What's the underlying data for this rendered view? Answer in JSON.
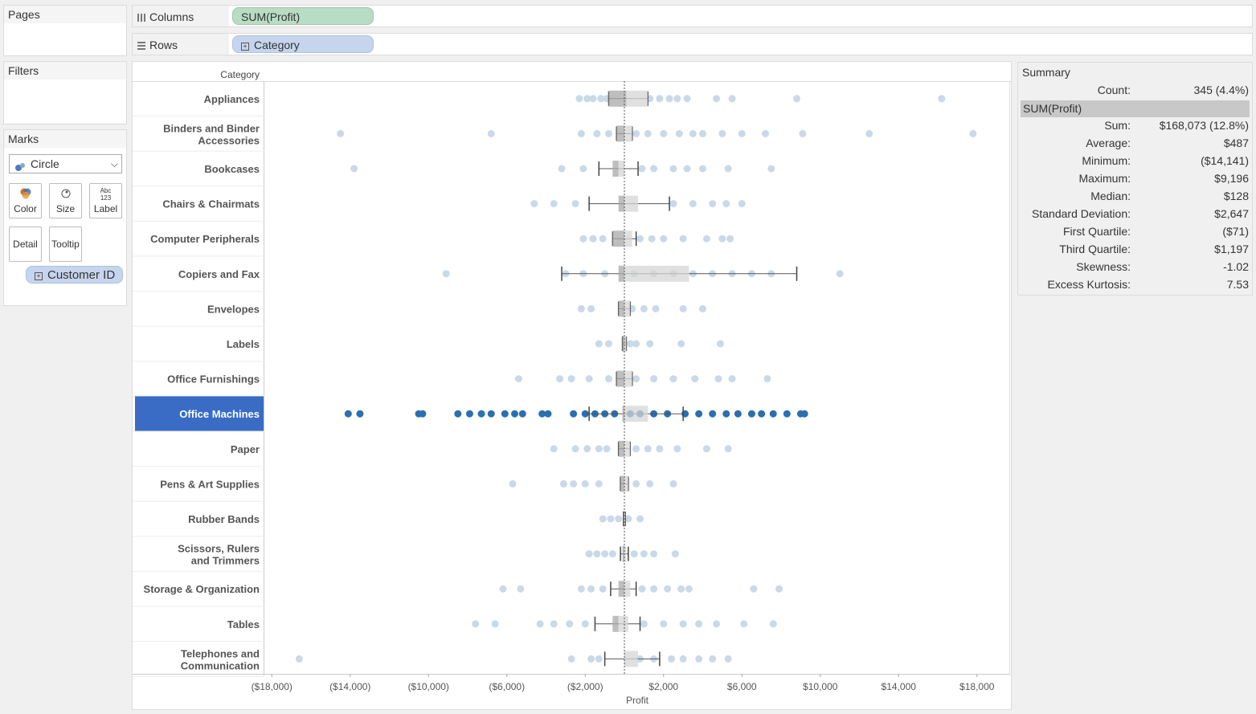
{
  "pages": {
    "title": "Pages"
  },
  "filters": {
    "title": "Filters"
  },
  "marks": {
    "title": "Marks",
    "mark_type": "Circle",
    "buttons": {
      "color": "Color",
      "size": "Size",
      "label": "Label",
      "detail": "Detail",
      "tooltip": "Tooltip",
      "label_icon": "Abc 123"
    },
    "detail_pill": "Customer ID"
  },
  "columns_shelf": {
    "label": "Columns",
    "pill": "SUM(Profit)"
  },
  "rows_shelf": {
    "label": "Rows",
    "pill": "Category"
  },
  "summary": {
    "title": "Summary",
    "count_label": "Count:",
    "count_value": "345 (4.4%)",
    "measure": "SUM(Profit)",
    "stats": [
      {
        "label": "Sum:",
        "value": "$168,073 (12.8%)"
      },
      {
        "label": "Average:",
        "value": "$487"
      },
      {
        "label": "Minimum:",
        "value": "($14,141)"
      },
      {
        "label": "Maximum:",
        "value": "$9,196"
      },
      {
        "label": "Median:",
        "value": "$128"
      },
      {
        "label": "Standard Deviation:",
        "value": "$2,647"
      },
      {
        "label": "First Quartile:",
        "value": "($71)"
      },
      {
        "label": "Third Quartile:",
        "value": "$1,197"
      },
      {
        "label": "Skewness:",
        "value": "-1.02"
      },
      {
        "label": "Excess Kurtosis:",
        "value": "7.53"
      }
    ]
  },
  "colors": {
    "highlight_row": "#3a6cc6",
    "selected_point": "#2b6fb0",
    "point": "#c9d9e8",
    "box": "#d6d6d6"
  },
  "chart_data": {
    "type": "scatter",
    "row_header": "Category",
    "xlabel": "Profit",
    "xlim": [
      -20000,
      20000
    ],
    "ticks": [
      -18000,
      -14000,
      -10000,
      -6000,
      -2000,
      2000,
      6000,
      10000,
      14000,
      18000
    ],
    "tick_labels": [
      "($18,000)",
      "($14,000)",
      "($10,000)",
      "($6,000)",
      "($2,000)",
      "$2,000",
      "$6,000",
      "$10,000",
      "$14,000",
      "$18,000"
    ],
    "reference_line": 0,
    "highlighted": "Office Machines",
    "categories": [
      {
        "name": "Appliances",
        "box": [
          -800,
          1200
        ],
        "median": 100,
        "whiskers": [
          -800,
          1200
        ],
        "points": [
          -2300,
          -1900,
          -1600,
          -1200,
          -900,
          1300,
          1800,
          2300,
          2700,
          3200,
          4700,
          5500,
          8800,
          16200
        ]
      },
      {
        "name": "Binders and Binder Accessories",
        "box": [
          -400,
          400
        ],
        "median": 0,
        "whiskers": [
          -400,
          400
        ],
        "points": [
          -14500,
          -6800,
          -2200,
          -1400,
          -800,
          600,
          1200,
          2000,
          2800,
          3500,
          4000,
          5000,
          6000,
          7200,
          9100,
          12500,
          17800
        ]
      },
      {
        "name": "Bookcases",
        "box": [
          -600,
          0
        ],
        "median": -300,
        "whiskers": [
          -1300,
          700
        ],
        "points": [
          -13800,
          -3200,
          -2100,
          900,
          1500,
          2500,
          3200,
          4000,
          5300,
          7500
        ]
      },
      {
        "name": "Chairs & Chairmats",
        "box": [
          -300,
          700
        ],
        "median": 0,
        "whiskers": [
          -1800,
          2300
        ],
        "points": [
          -4600,
          -3600,
          -2500,
          2500,
          3500,
          4500,
          5200,
          6000
        ]
      },
      {
        "name": "Computer Peripherals",
        "box": [
          -600,
          400
        ],
        "median": 0,
        "whiskers": [
          -600,
          600
        ],
        "points": [
          -2100,
          -1600,
          -1100,
          800,
          1400,
          2000,
          3000,
          4200,
          5000,
          5400
        ]
      },
      {
        "name": "Copiers and Fax",
        "box": [
          -300,
          3300
        ],
        "median": 0,
        "whiskers": [
          -3200,
          8800
        ],
        "points": [
          -9100,
          -3000,
          -2100,
          -1000,
          500,
          1500,
          2500,
          3500,
          4500,
          5500,
          6500,
          7500,
          11000
        ]
      },
      {
        "name": "Envelopes",
        "box": [
          -300,
          300
        ],
        "median": 0,
        "whiskers": [
          -300,
          300
        ],
        "points": [
          -2200,
          -1700,
          400,
          1000,
          1600,
          3000,
          4000
        ]
      },
      {
        "name": "Labels",
        "box": [
          -100,
          100
        ],
        "median": 0,
        "whiskers": [
          -100,
          100
        ],
        "points": [
          -1300,
          -800,
          300,
          600,
          1300,
          2900,
          4900
        ]
      },
      {
        "name": "Office Furnishings",
        "box": [
          -400,
          400
        ],
        "median": 0,
        "whiskers": [
          -400,
          400
        ],
        "points": [
          -5400,
          -3300,
          -2700,
          -1800,
          -800,
          600,
          1500,
          2500,
          3600,
          4800,
          5500,
          7300
        ]
      },
      {
        "name": "Office Machines",
        "box": [
          -100,
          1200
        ],
        "median": 0,
        "whiskers": [
          -1800,
          3000
        ],
        "points": [
          -14100,
          -13500,
          -10500,
          -10300,
          -8500,
          -7900,
          -7300,
          -6800,
          -6100,
          -5600,
          -5200,
          -4200,
          -3900,
          -2600,
          -2000,
          -1500,
          -1000,
          -500,
          300,
          800,
          1500,
          2200,
          3100,
          3800,
          4500,
          5200,
          5800,
          6500,
          7000,
          7600,
          8300,
          9000,
          9196
        ]
      },
      {
        "name": "Paper",
        "box": [
          -300,
          300
        ],
        "median": 0,
        "whiskers": [
          -300,
          300
        ],
        "points": [
          -3600,
          -2500,
          -1900,
          -1300,
          -900,
          600,
          1200,
          1800,
          2700,
          4200,
          5300
        ]
      },
      {
        "name": "Pens & Art Supplies",
        "box": [
          -200,
          200
        ],
        "median": 0,
        "whiskers": [
          -200,
          200
        ],
        "points": [
          -5700,
          -3100,
          -2600,
          -2000,
          -1300,
          600,
          1300,
          2500
        ]
      },
      {
        "name": "Rubber Bands",
        "box": [
          -50,
          50
        ],
        "median": 0,
        "whiskers": [
          -50,
          50
        ],
        "points": [
          -1100,
          -700,
          -300,
          200,
          800
        ]
      },
      {
        "name": "Scissors, Rulers and Trimmers",
        "box": [
          -100,
          100
        ],
        "median": 0,
        "whiskers": [
          -200,
          200
        ],
        "points": [
          -1800,
          -1400,
          -1000,
          -600,
          500,
          1000,
          1500,
          2600
        ]
      },
      {
        "name": "Storage & Organization",
        "box": [
          -300,
          300
        ],
        "median": 0,
        "whiskers": [
          -700,
          600
        ],
        "points": [
          -6200,
          -5300,
          -2200,
          -1700,
          -1100,
          900,
          1500,
          2200,
          2900,
          3300,
          6600,
          7900
        ]
      },
      {
        "name": "Tables",
        "box": [
          -600,
          200
        ],
        "median": -300,
        "whiskers": [
          -1500,
          800
        ],
        "points": [
          -7600,
          -6600,
          -4300,
          -3600,
          -2800,
          -2000,
          1000,
          2000,
          3000,
          3800,
          4700,
          6100,
          7600
        ]
      },
      {
        "name": "Telephones and Communication",
        "box": [
          0,
          700
        ],
        "median": 0,
        "whiskers": [
          -1000,
          1800
        ],
        "points": [
          -16600,
          -2700,
          -1700,
          -1300,
          800,
          1500,
          2400,
          3000,
          3800,
          4500,
          5300
        ]
      }
    ]
  }
}
